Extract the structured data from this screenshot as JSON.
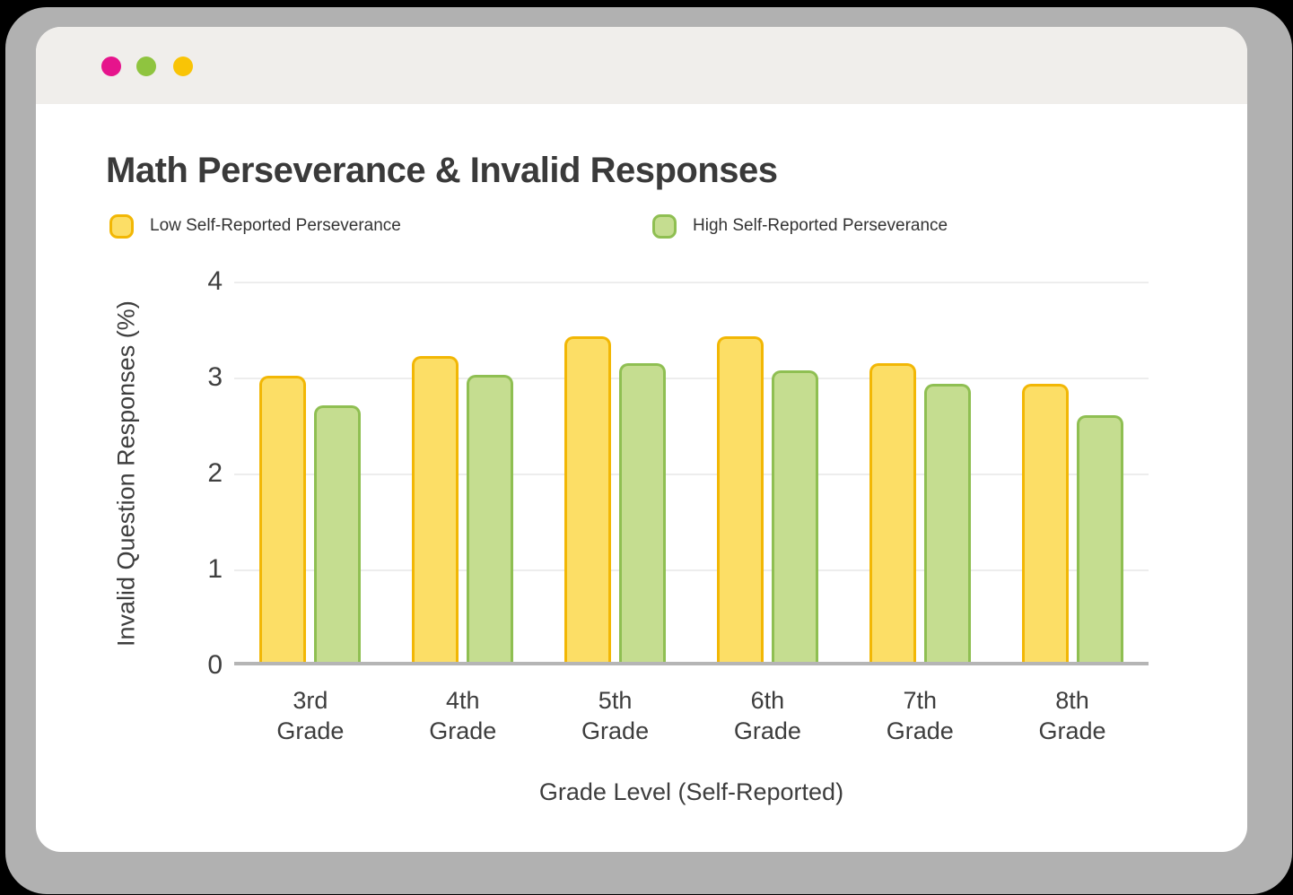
{
  "window": {
    "control_colors": {
      "pink": "#E6148C",
      "green": "#8FC43F",
      "yellow": "#F9C406"
    },
    "header_color": "#F0EEEB",
    "frame_color": "#B1B1B1"
  },
  "chart_data": {
    "type": "bar",
    "title": "Math Perseverance & Invalid Responses",
    "xlabel": "Grade Level (Self-Reported)",
    "ylabel": "Invalid Question Responses (%)",
    "categories": [
      "3rd Grade",
      "4th Grade",
      "5th Grade",
      "6th Grade",
      "7th Grade",
      "8th Grade"
    ],
    "series": [
      {
        "name": "Low Self-Reported Perseverance",
        "fill": "#FCDE66",
        "stroke": "#F2B705",
        "values": [
          2.98,
          3.19,
          3.39,
          3.39,
          3.11,
          2.9
        ]
      },
      {
        "name": "High Self-Reported Perseverance",
        "fill": "#C5DD90",
        "stroke": "#8FBF52",
        "values": [
          2.67,
          2.99,
          3.11,
          3.04,
          2.9,
          2.57
        ]
      }
    ],
    "ylim": [
      0,
      4
    ],
    "yticks": [
      0,
      1,
      2,
      3,
      4
    ],
    "grid": true,
    "legend_position": "top"
  }
}
